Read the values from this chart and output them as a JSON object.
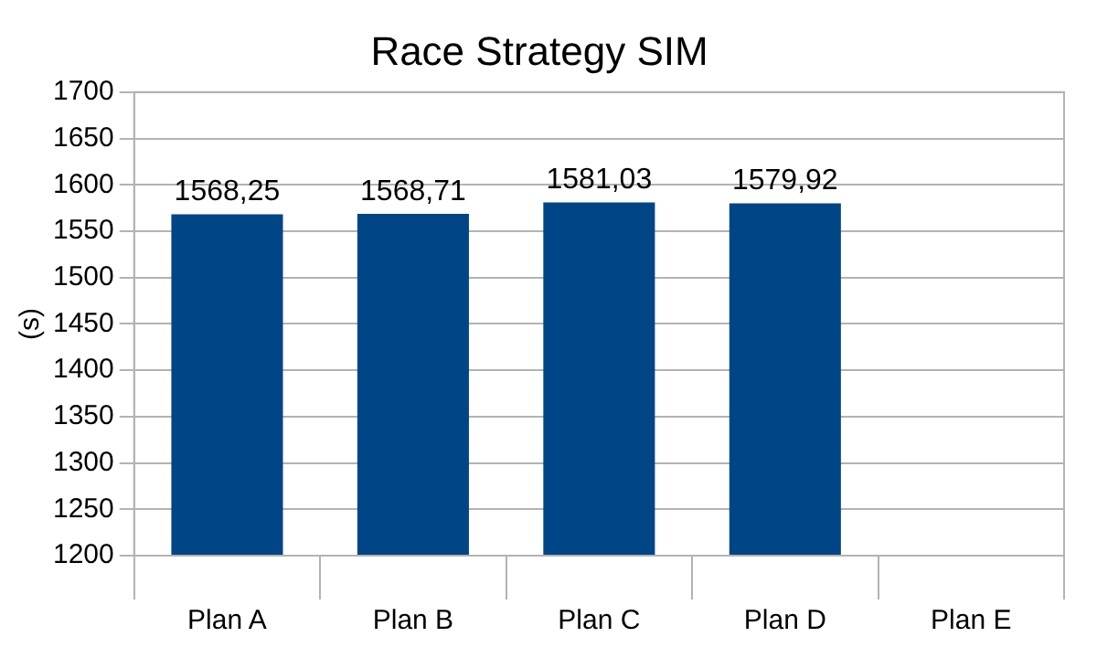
{
  "chart_data": {
    "type": "bar",
    "title": "Race Strategy SIM",
    "ylabel": "(s)",
    "categories": [
      "Plan A",
      "Plan B",
      "Plan C",
      "Plan D",
      "Plan E"
    ],
    "values": [
      1568.25,
      1568.71,
      1581.03,
      1579.92,
      null
    ],
    "value_labels": [
      "1568,25",
      "1568,71",
      "1581,03",
      "1579,92",
      null
    ],
    "color": "#004586",
    "ylim": [
      1200,
      1700
    ],
    "yticks": [
      1200,
      1250,
      1300,
      1350,
      1400,
      1450,
      1500,
      1550,
      1600,
      1650,
      1700
    ],
    "grid": "y",
    "legend": false
  }
}
